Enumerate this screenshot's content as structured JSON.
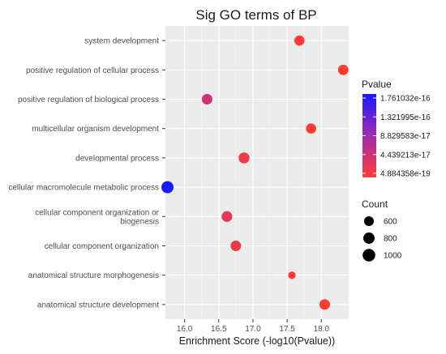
{
  "chart_data": {
    "type": "scatter",
    "title": "Sig GO terms of BP",
    "xlabel": "Enrichment Score (-log10(Pvalue))",
    "ylabel": "",
    "xlim": [
      15.72,
      18.4
    ],
    "x_ticks": [
      "16.0",
      "16.5",
      "17.0",
      "17.5",
      "18.0"
    ],
    "x_tick_values": [
      16.0,
      16.5,
      17.0,
      17.5,
      18.0
    ],
    "grid": true,
    "legend_position": "right",
    "categories": [
      "system development",
      "positive regulation of cellular process",
      "positive regulation of biological process",
      "multicellular organism development",
      "developmental process",
      "cellular macromolecule metabolic process",
      "cellular component organization or biogenesis",
      "cellular component organization",
      "anatomical structure morphogenesis",
      "anatomical structure development"
    ],
    "points": [
      {
        "term": "system development",
        "x": 17.68,
        "count": 650,
        "pvalue": 2.1e-18
      },
      {
        "term": "positive regulation of cellular process",
        "x": 18.32,
        "count": 680,
        "pvalue": 4.9e-19
      },
      {
        "term": "positive regulation of biological process",
        "x": 16.33,
        "count": 700,
        "pvalue": 4.7e-17
      },
      {
        "term": "multicellular organism development",
        "x": 17.85,
        "count": 660,
        "pvalue": 1.4e-18
      },
      {
        "term": "developmental process",
        "x": 16.87,
        "count": 740,
        "pvalue": 1.35e-17
      },
      {
        "term": "cellular macromolecule metabolic process",
        "x": 15.75,
        "count": 920,
        "pvalue": 1.761032e-16
      },
      {
        "term": "cellular component organization or biogenesis",
        "x": 16.62,
        "count": 720,
        "pvalue": 2.4e-17
      },
      {
        "term": "cellular component organization",
        "x": 16.75,
        "count": 690,
        "pvalue": 1.8e-17
      },
      {
        "term": "anatomical structure morphogenesis",
        "x": 17.57,
        "count": 350,
        "pvalue": 2.7e-18
      },
      {
        "term": "anatomical structure development",
        "x": 18.05,
        "count": 700,
        "pvalue": 8.9e-19
      }
    ],
    "color_legend": {
      "title": "Pvalue",
      "labels": [
        "1.761032e-16",
        "1.321995e-16",
        "8.829583e-17",
        "4.439213e-17",
        "4.884358e-19"
      ],
      "low_color": "#ff3b2f",
      "mid_color": "#a12bb0",
      "high_color": "#1a1aff"
    },
    "size_legend": {
      "title": "Count",
      "labels": [
        "600",
        "800",
        "1000"
      ],
      "values": [
        600,
        800,
        1000
      ]
    }
  }
}
